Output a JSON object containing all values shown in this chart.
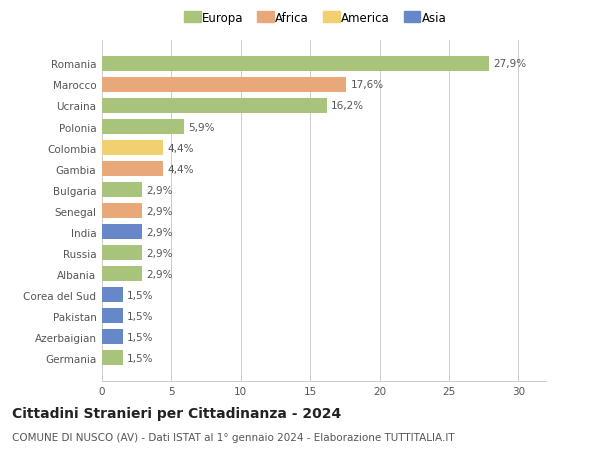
{
  "countries": [
    "Romania",
    "Marocco",
    "Ucraina",
    "Polonia",
    "Colombia",
    "Gambia",
    "Bulgaria",
    "Senegal",
    "India",
    "Russia",
    "Albania",
    "Corea del Sud",
    "Pakistan",
    "Azerbaigian",
    "Germania"
  ],
  "values": [
    27.9,
    17.6,
    16.2,
    5.9,
    4.4,
    4.4,
    2.9,
    2.9,
    2.9,
    2.9,
    2.9,
    1.5,
    1.5,
    1.5,
    1.5
  ],
  "labels": [
    "27,9%",
    "17,6%",
    "16,2%",
    "5,9%",
    "4,4%",
    "4,4%",
    "2,9%",
    "2,9%",
    "2,9%",
    "2,9%",
    "2,9%",
    "1,5%",
    "1,5%",
    "1,5%",
    "1,5%"
  ],
  "continents": [
    "Europa",
    "Africa",
    "Europa",
    "Europa",
    "America",
    "Africa",
    "Europa",
    "Africa",
    "Asia",
    "Europa",
    "Europa",
    "Asia",
    "Asia",
    "Asia",
    "Europa"
  ],
  "colors": {
    "Europa": "#a8c47a",
    "Africa": "#e8a87a",
    "America": "#f0d070",
    "Asia": "#6688c8"
  },
  "legend_order": [
    "Europa",
    "Africa",
    "America",
    "Asia"
  ],
  "xlim": [
    0,
    32
  ],
  "xticks": [
    0,
    5,
    10,
    15,
    20,
    25,
    30
  ],
  "title": "Cittadini Stranieri per Cittadinanza - 2024",
  "subtitle": "COMUNE DI NUSCO (AV) - Dati ISTAT al 1° gennaio 2024 - Elaborazione TUTTITALIA.IT",
  "bg_color": "#ffffff",
  "grid_color": "#cccccc",
  "bar_height": 0.72,
  "title_fontsize": 10,
  "subtitle_fontsize": 7.5,
  "label_fontsize": 7.5,
  "tick_fontsize": 7.5,
  "legend_fontsize": 8.5
}
